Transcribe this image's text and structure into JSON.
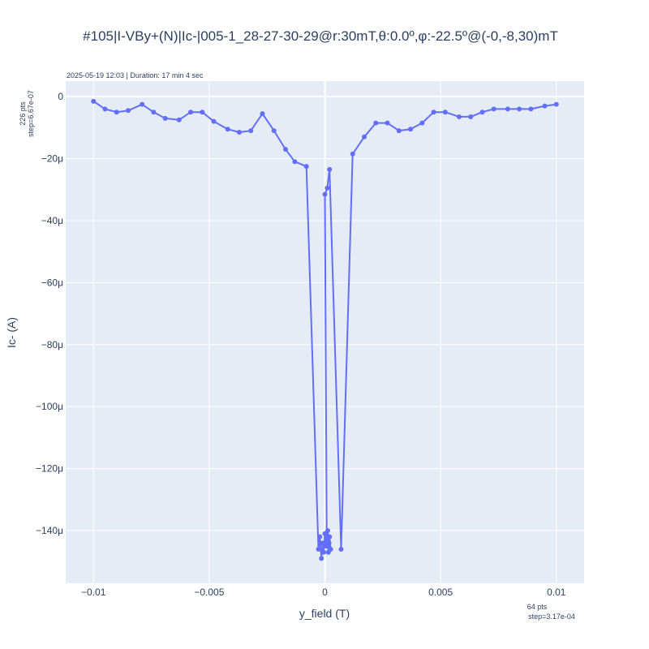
{
  "chart_data": {
    "type": "line",
    "title": "#105|I-VBy+(N)|Ic-|005-1_28-27-30-29@r:30mT,θ:0.0º,φ:-22.5º@(-0,-8,30)mT",
    "subtitle": "2025-05-19 12:03 | Duration: 17 min 4 sec",
    "xlabel": "y_field (T)",
    "ylabel": "Ic- (A)",
    "y_note_line1": "226 pts",
    "y_note_line2": "step=6.67e-07",
    "x_note_line1": "64 pts",
    "x_note_line2": "step=3.17e-04",
    "xlim": [
      -0.0112,
      0.0112
    ],
    "ylim": [
      -0.000157,
      5e-06
    ],
    "x_ticks": [
      {
        "value": -0.01,
        "label": "−0.01"
      },
      {
        "value": -0.005,
        "label": "−0.005"
      },
      {
        "value": 0,
        "label": "0"
      },
      {
        "value": 0.005,
        "label": "0.005"
      },
      {
        "value": 0.01,
        "label": "0.01"
      }
    ],
    "y_ticks": [
      {
        "value": 0,
        "label": "0"
      },
      {
        "value": -2e-05,
        "label": "−20μ"
      },
      {
        "value": -4e-05,
        "label": "−40μ"
      },
      {
        "value": -6e-05,
        "label": "−60μ"
      },
      {
        "value": -8e-05,
        "label": "−80μ"
      },
      {
        "value": -0.0001,
        "label": "−100μ"
      },
      {
        "value": -0.00012,
        "label": "−120μ"
      },
      {
        "value": -0.00014,
        "label": "−140μ"
      }
    ],
    "grid": true,
    "line_color": "#636efa",
    "plot_bg": "#e5ecf6",
    "series": [
      {
        "x": [
          -0.01,
          -0.0095,
          -0.009,
          -0.0085,
          -0.0079,
          -0.0074,
          -0.0069,
          -0.0063,
          -0.0058,
          -0.0053,
          -0.0048,
          -0.0042,
          -0.0037,
          -0.0032,
          -0.0027,
          -0.0022,
          -0.0017,
          -0.0013,
          -0.0008,
          -0.00028,
          -0.00022,
          -0.00015,
          -0.0001,
          -5e-05,
          0.0,
          5e-05,
          0.0001,
          0.00015,
          0.0002,
          0.00025,
          0.00018,
          0.00012,
          8e-05,
          0.0,
          0.0001,
          0.0002,
          0.0007,
          0.0012,
          0.0017,
          0.0022,
          0.0027,
          0.0032,
          0.0037,
          0.0042,
          0.0047,
          0.0052,
          0.0058,
          0.0063,
          0.0068,
          0.0073,
          0.0079,
          0.0084,
          0.0089,
          0.0095,
          0.01
        ],
        "y": [
          -1.5e-06,
          -4e-06,
          -5e-06,
          -4.5e-06,
          -2.5e-06,
          -5e-06,
          -7e-06,
          -7.5e-06,
          -5e-06,
          -5e-06,
          -8e-06,
          -1.05e-05,
          -1.15e-05,
          -1.1e-05,
          -5.5e-06,
          -1.1e-05,
          -1.7e-05,
          -2.1e-05,
          -2.25e-05,
          -0.000146,
          -0.000142,
          -0.000149,
          -0.000144,
          -0.000147,
          -0.000141,
          -0.000145,
          -0.000143,
          -0.000147,
          -0.000142,
          -0.000146,
          -0.000144,
          -0.00014,
          -0.000145,
          -3.15e-05,
          -2.95e-05,
          -2.35e-05,
          -0.000146,
          -1.85e-05,
          -1.3e-05,
          -8.5e-06,
          -8.5e-06,
          -1.1e-05,
          -1.05e-05,
          -8.5e-06,
          -5e-06,
          -5e-06,
          -6.5e-06,
          -6.5e-06,
          -5e-06,
          -4e-06,
          -4e-06,
          -4e-06,
          -4e-06,
          -3e-06,
          -2.5e-06
        ]
      }
    ]
  }
}
